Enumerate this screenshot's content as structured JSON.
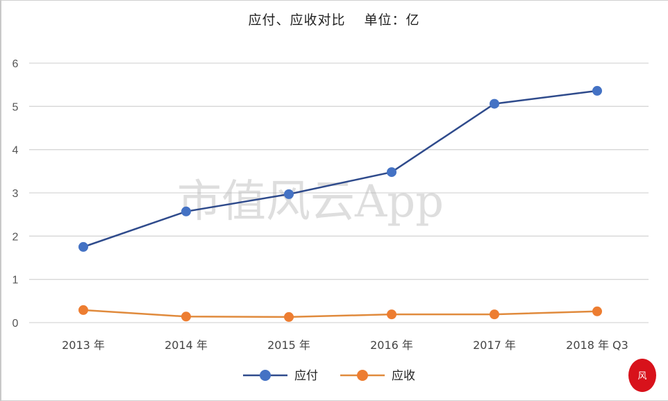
{
  "chart_data": {
    "type": "line",
    "title": "应付、应收对比　 单位：亿",
    "categories": [
      "2013 年",
      "2014 年",
      "2015 年",
      "2016 年",
      "2017 年",
      "2018 年 Q3"
    ],
    "series": [
      {
        "name": "应付",
        "values": [
          1.75,
          2.57,
          2.97,
          3.48,
          5.06,
          5.36
        ],
        "color": "#4472c4",
        "line_color": "#2f4b8c"
      },
      {
        "name": "应收",
        "values": [
          0.29,
          0.14,
          0.13,
          0.19,
          0.19,
          0.26
        ],
        "color": "#ed7d31",
        "line_color": "#e08a3c"
      }
    ],
    "ylim": [
      0,
      6
    ],
    "yticks": [
      "0",
      "1",
      "2",
      "3",
      "4",
      "5",
      "6"
    ],
    "grid": true,
    "legend": "bottom",
    "watermark": "市值风云App",
    "seal": "风云"
  }
}
